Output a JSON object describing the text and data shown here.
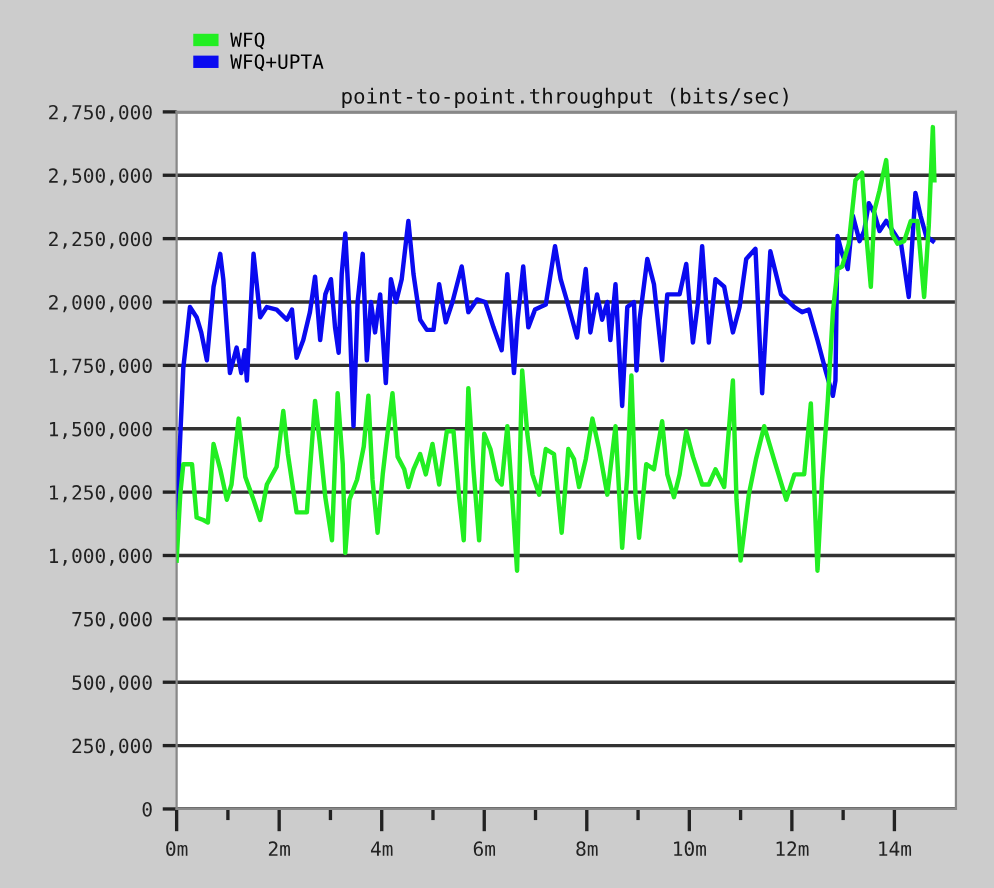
{
  "chart_data": {
    "type": "line",
    "title": "point-to-point.throughput (bits/sec)",
    "series": [
      {
        "name": "WFQ",
        "color": "#22ee22",
        "x": [
          0,
          0.07,
          0.13,
          0.3,
          0.39,
          0.52,
          0.61,
          0.72,
          0.85,
          0.98,
          1.07,
          1.21,
          1.34,
          1.5,
          1.63,
          1.76,
          1.95,
          2.08,
          2.17,
          2.34,
          2.54,
          2.7,
          2.8,
          2.9,
          3.03,
          3.14,
          3.24,
          3.29,
          3.37,
          3.52,
          3.65,
          3.74,
          3.82,
          3.92,
          4.02,
          4.1,
          4.21,
          4.31,
          4.44,
          4.52,
          4.62,
          4.75,
          4.86,
          4.99,
          5.12,
          5.27,
          5.4,
          5.51,
          5.6,
          5.69,
          5.79,
          5.9,
          6.0,
          6.12,
          6.25,
          6.34,
          6.45,
          6.55,
          6.64,
          6.74,
          6.84,
          6.94,
          7.07,
          7.2,
          7.36,
          7.51,
          7.64,
          7.75,
          7.85,
          7.98,
          8.11,
          8.24,
          8.4,
          8.56,
          8.69,
          8.79,
          8.87,
          8.95,
          9.02,
          9.16,
          9.31,
          9.47,
          9.57,
          9.7,
          9.81,
          9.94,
          10.07,
          10.25,
          10.38,
          10.51,
          10.68,
          10.85,
          10.92,
          11.0,
          11.16,
          11.3,
          11.46,
          11.65,
          11.89,
          12.05,
          12.24,
          12.37,
          12.5,
          12.59,
          12.7,
          12.8,
          12.89,
          12.98,
          13.11,
          13.24,
          13.37,
          13.45,
          13.54,
          13.61,
          13.71,
          13.84,
          13.95,
          14.06,
          14.19,
          14.32,
          14.45,
          14.58,
          14.67,
          14.75,
          14.78
        ],
        "values": [
          980000,
          1240000,
          1360000,
          1360000,
          1150000,
          1140000,
          1130000,
          1440000,
          1340000,
          1220000,
          1280000,
          1540000,
          1310000,
          1220000,
          1140000,
          1280000,
          1350000,
          1570000,
          1400000,
          1170000,
          1170000,
          1610000,
          1430000,
          1230000,
          1060000,
          1640000,
          1360000,
          1010000,
          1220000,
          1300000,
          1430000,
          1630000,
          1300000,
          1090000,
          1320000,
          1460000,
          1640000,
          1390000,
          1340000,
          1270000,
          1340000,
          1400000,
          1320000,
          1440000,
          1280000,
          1490000,
          1490000,
          1230000,
          1060000,
          1660000,
          1340000,
          1060000,
          1480000,
          1420000,
          1300000,
          1280000,
          1510000,
          1220000,
          940000,
          1730000,
          1480000,
          1320000,
          1240000,
          1420000,
          1400000,
          1090000,
          1420000,
          1380000,
          1270000,
          1380000,
          1540000,
          1420000,
          1240000,
          1510000,
          1030000,
          1320000,
          1710000,
          1240000,
          1070000,
          1360000,
          1340000,
          1530000,
          1320000,
          1230000,
          1320000,
          1490000,
          1390000,
          1280000,
          1280000,
          1340000,
          1270000,
          1690000,
          1220000,
          980000,
          1240000,
          1380000,
          1510000,
          1380000,
          1220000,
          1320000,
          1320000,
          1600000,
          940000,
          1300000,
          1610000,
          1960000,
          2130000,
          2140000,
          2230000,
          2480000,
          2510000,
          2270000,
          2060000,
          2360000,
          2440000,
          2560000,
          2270000,
          2230000,
          2240000,
          2320000,
          2320000,
          2020000,
          2300000,
          2690000,
          2480000
        ]
      },
      {
        "name": "WFQ+UPTA",
        "color": "#0a0af0",
        "x": [
          0,
          0.13,
          0.26,
          0.39,
          0.48,
          0.59,
          0.72,
          0.85,
          0.91,
          1.04,
          1.17,
          1.26,
          1.33,
          1.37,
          1.5,
          1.63,
          1.76,
          1.95,
          2.15,
          2.25,
          2.34,
          2.47,
          2.6,
          2.7,
          2.8,
          2.9,
          3.01,
          3.09,
          3.16,
          3.22,
          3.29,
          3.37,
          3.45,
          3.53,
          3.63,
          3.71,
          3.79,
          3.87,
          3.97,
          4.08,
          4.18,
          4.28,
          4.39,
          4.52,
          4.62,
          4.75,
          4.88,
          5.01,
          5.12,
          5.25,
          5.38,
          5.56,
          5.69,
          5.86,
          6.02,
          6.18,
          6.34,
          6.45,
          6.58,
          6.65,
          6.76,
          6.86,
          6.99,
          7.2,
          7.38,
          7.49,
          7.62,
          7.81,
          7.98,
          8.07,
          8.2,
          8.3,
          8.4,
          8.46,
          8.56,
          8.69,
          8.79,
          8.92,
          8.97,
          9.03,
          9.18,
          9.31,
          9.47,
          9.57,
          9.81,
          9.94,
          10.07,
          10.17,
          10.25,
          10.38,
          10.51,
          10.68,
          10.85,
          10.98,
          11.11,
          11.29,
          11.42,
          11.58,
          11.79,
          12.05,
          12.2,
          12.33,
          12.5,
          12.67,
          12.8,
          12.85,
          12.89,
          12.98,
          13.09,
          13.19,
          13.32,
          13.41,
          13.5,
          13.61,
          13.71,
          13.84,
          13.97,
          14.13,
          14.28,
          14.41,
          14.51,
          14.62,
          14.75
        ],
        "values": [
          1150000,
          1740000,
          1980000,
          1940000,
          1880000,
          1770000,
          2060000,
          2190000,
          2090000,
          1720000,
          1820000,
          1720000,
          1810000,
          1690000,
          2190000,
          1940000,
          1980000,
          1970000,
          1930000,
          1970000,
          1780000,
          1850000,
          1960000,
          2100000,
          1850000,
          2030000,
          2090000,
          1900000,
          1800000,
          2110000,
          2270000,
          1960000,
          1510000,
          2000000,
          2190000,
          1770000,
          2000000,
          1880000,
          2030000,
          1680000,
          2090000,
          2000000,
          2090000,
          2320000,
          2110000,
          1930000,
          1890000,
          1890000,
          2070000,
          1920000,
          2000000,
          2140000,
          1960000,
          2010000,
          2000000,
          1900000,
          1810000,
          2110000,
          1720000,
          1930000,
          2140000,
          1900000,
          1970000,
          1990000,
          2220000,
          2090000,
          2000000,
          1860000,
          2130000,
          1880000,
          2030000,
          1930000,
          2000000,
          1850000,
          2070000,
          1590000,
          1980000,
          2000000,
          1730000,
          1930000,
          2170000,
          2070000,
          1770000,
          2030000,
          2030000,
          2150000,
          1840000,
          2000000,
          2220000,
          1840000,
          2090000,
          2060000,
          1880000,
          1980000,
          2170000,
          2210000,
          1640000,
          2200000,
          2030000,
          1980000,
          1960000,
          1970000,
          1850000,
          1720000,
          1630000,
          1690000,
          2260000,
          2190000,
          2130000,
          2340000,
          2240000,
          2280000,
          2390000,
          2350000,
          2280000,
          2320000,
          2280000,
          2230000,
          2020000,
          2430000,
          2340000,
          2260000,
          2240000
        ]
      }
    ],
    "xlim": [
      0,
      15.2
    ],
    "xticks": [
      {
        "value": 0,
        "label": "0m"
      },
      {
        "value": 1,
        "label": null
      },
      {
        "value": 2,
        "label": "2m"
      },
      {
        "value": 3,
        "label": null
      },
      {
        "value": 4,
        "label": "4m"
      },
      {
        "value": 5,
        "label": null
      },
      {
        "value": 6,
        "label": "6m"
      },
      {
        "value": 7,
        "label": null
      },
      {
        "value": 8,
        "label": "8m"
      },
      {
        "value": 9,
        "label": null
      },
      {
        "value": 10,
        "label": "10m"
      },
      {
        "value": 11,
        "label": null
      },
      {
        "value": 12,
        "label": "12m"
      },
      {
        "value": 13,
        "label": null
      },
      {
        "value": 14,
        "label": "14m"
      }
    ],
    "ylim": [
      0,
      2750000
    ],
    "yticks": [
      0,
      {
        "value": 250000,
        "label": "250,000"
      },
      {
        "value": 500000,
        "label": "500,000"
      },
      {
        "value": 750000,
        "label": "750,000"
      },
      {
        "value": 1000000,
        "label": "1,000,000"
      },
      {
        "value": 1250000,
        "label": "1,250,000"
      },
      {
        "value": 1500000,
        "label": "1,500,000"
      },
      {
        "value": 1750000,
        "label": "1,750,000"
      },
      {
        "value": 2000000,
        "label": "2,000,000"
      },
      {
        "value": 2250000,
        "label": "2,250,000"
      },
      {
        "value": 2500000,
        "label": "2,500,000"
      },
      {
        "value": 2750000,
        "label": "2,750,000"
      }
    ],
    "grid": "y",
    "legend": "top left",
    "marker": "none",
    "line_style": "solid"
  }
}
